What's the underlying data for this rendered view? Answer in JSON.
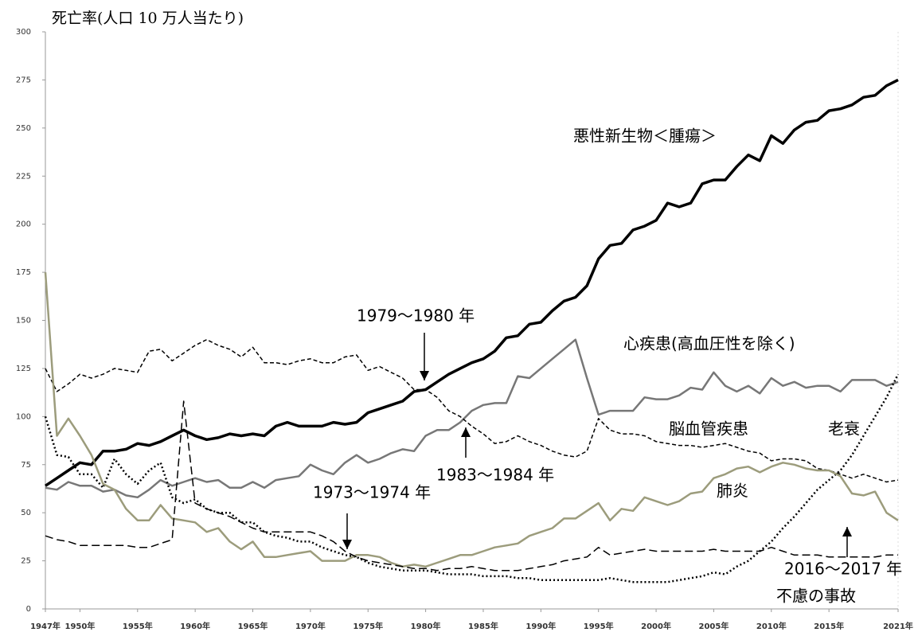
{
  "chart_data": {
    "type": "line",
    "y_label": "死亡率(人口 10 万人当たり)",
    "x": [
      1947,
      1948,
      1949,
      1950,
      1951,
      1952,
      1953,
      1954,
      1955,
      1956,
      1957,
      1958,
      1959,
      1960,
      1961,
      1962,
      1963,
      1964,
      1965,
      1966,
      1967,
      1968,
      1969,
      1970,
      1971,
      1972,
      1973,
      1974,
      1975,
      1976,
      1977,
      1978,
      1979,
      1980,
      1981,
      1982,
      1983,
      1984,
      1985,
      1986,
      1987,
      1988,
      1989,
      1990,
      1991,
      1992,
      1993,
      1994,
      1995,
      1996,
      1997,
      1998,
      1999,
      2000,
      2001,
      2002,
      2003,
      2004,
      2005,
      2006,
      2007,
      2008,
      2009,
      2010,
      2011,
      2012,
      2013,
      2014,
      2015,
      2016,
      2017,
      2018,
      2019,
      2020,
      2021
    ],
    "xlim": [
      1947,
      2021
    ],
    "xticks": [
      {
        "value": 1947,
        "label": "1947年"
      },
      {
        "value": 1950,
        "label": "1950年"
      },
      {
        "value": 1955,
        "label": "1955年"
      },
      {
        "value": 1960,
        "label": "1960年"
      },
      {
        "value": 1965,
        "label": "1965年"
      },
      {
        "value": 1970,
        "label": "1970年"
      },
      {
        "value": 1975,
        "label": "1975年"
      },
      {
        "value": 1980,
        "label": "1980年"
      },
      {
        "value": 1985,
        "label": "1985年"
      },
      {
        "value": 1990,
        "label": "1990年"
      },
      {
        "value": 1995,
        "label": "1995年"
      },
      {
        "value": 2000,
        "label": "2000年"
      },
      {
        "value": 2005,
        "label": "2005年"
      },
      {
        "value": 2010,
        "label": "2010年"
      },
      {
        "value": 2015,
        "label": "2015年"
      },
      {
        "value": 2021,
        "label": "2021年"
      }
    ],
    "ylim": [
      0,
      300
    ],
    "yticks": [
      0,
      25,
      50,
      75,
      100,
      125,
      150,
      175,
      200,
      225,
      250,
      275,
      300
    ],
    "series": [
      {
        "name": "悪性新生物＜腫瘍＞",
        "color": "#000000",
        "line_style": "solid",
        "values": [
          64,
          68,
          72,
          76,
          75,
          82,
          82,
          83,
          86,
          85,
          87,
          90,
          93,
          90,
          88,
          89,
          91,
          90,
          91,
          90,
          95,
          97,
          95,
          95,
          95,
          97,
          96,
          97,
          102,
          104,
          106,
          108,
          113,
          114,
          118,
          122,
          125,
          128,
          130,
          134,
          141,
          142,
          148,
          149,
          155,
          160,
          162,
          168,
          182,
          189,
          190,
          197,
          199,
          202,
          211,
          209,
          211,
          221,
          223,
          223,
          230,
          236,
          233,
          246,
          242,
          249,
          253,
          254,
          259,
          260,
          262,
          266,
          267,
          272,
          275
        ]
      },
      {
        "name": "心疾患(高血圧性を除く)",
        "color": "#777777",
        "line_style": "solid",
        "values": [
          63,
          62,
          66,
          64,
          64,
          61,
          62,
          59,
          58,
          62,
          67,
          64,
          66,
          68,
          66,
          67,
          63,
          63,
          66,
          63,
          67,
          68,
          69,
          75,
          72,
          70,
          76,
          80,
          76,
          78,
          81,
          83,
          82,
          90,
          93,
          93,
          97,
          103,
          106,
          107,
          107,
          121,
          120,
          125,
          130,
          135,
          140,
          120,
          101,
          103,
          103,
          103,
          110,
          109,
          109,
          111,
          115,
          114,
          123,
          116,
          113,
          116,
          112,
          120,
          116,
          118,
          115,
          116,
          116,
          113,
          119,
          119,
          119,
          116,
          118
        ]
      },
      {
        "name": "脳血管疾患",
        "color": "#000000",
        "line_style": "dashed",
        "values": [
          125,
          113,
          117,
          122,
          120,
          122,
          125,
          124,
          123,
          134,
          135,
          129,
          133,
          137,
          140,
          137,
          135,
          131,
          136,
          128,
          128,
          127,
          129,
          130,
          128,
          128,
          131,
          132,
          124,
          126,
          123,
          120,
          114,
          114,
          110,
          103,
          100,
          95,
          91,
          86,
          87,
          90,
          87,
          85,
          82,
          80,
          79,
          82,
          99,
          93,
          91,
          91,
          90,
          87,
          86,
          85,
          85,
          84,
          85,
          86,
          84,
          82,
          81,
          77,
          78,
          78,
          77,
          73,
          72,
          70,
          68,
          70,
          68,
          66,
          67
        ]
      },
      {
        "name": "老衰",
        "color": "#000000",
        "line_style": "dotted",
        "values": [
          100,
          80,
          79,
          70,
          70,
          63,
          78,
          70,
          65,
          72,
          76,
          58,
          55,
          57,
          52,
          50,
          50,
          45,
          45,
          40,
          38,
          37,
          35,
          35,
          32,
          30,
          28,
          27,
          24,
          22,
          21,
          20,
          20,
          20,
          19,
          18,
          18,
          18,
          17,
          17,
          17,
          16,
          16,
          15,
          15,
          15,
          15,
          15,
          15,
          16,
          15,
          14,
          14,
          14,
          14,
          15,
          16,
          17,
          19,
          18,
          22,
          25,
          30,
          35,
          42,
          48,
          55,
          62,
          67,
          72,
          80,
          90,
          100,
          110,
          122
        ]
      },
      {
        "name": "肺炎",
        "color": "#9c9c7c",
        "line_style": "solid",
        "values": [
          175,
          90,
          99,
          90,
          80,
          65,
          62,
          52,
          46,
          46,
          54,
          47,
          46,
          45,
          40,
          42,
          35,
          31,
          35,
          27,
          27,
          28,
          29,
          30,
          25,
          25,
          25,
          28,
          28,
          27,
          24,
          22,
          23,
          22,
          24,
          26,
          28,
          28,
          30,
          32,
          33,
          34,
          38,
          40,
          42,
          47,
          47,
          51,
          55,
          46,
          52,
          51,
          58,
          56,
          54,
          56,
          60,
          61,
          68,
          70,
          73,
          74,
          71,
          74,
          76,
          75,
          73,
          72,
          72,
          69,
          60,
          59,
          61,
          50,
          46
        ]
      },
      {
        "name": "不慮の事故",
        "color": "#000000",
        "line_style": "longdash",
        "values": [
          38,
          36,
          35,
          33,
          33,
          33,
          33,
          33,
          32,
          32,
          34,
          36,
          108,
          55,
          52,
          50,
          48,
          45,
          42,
          40,
          40,
          40,
          40,
          40,
          38,
          35,
          30,
          27,
          25,
          24,
          23,
          22,
          21,
          21,
          20,
          21,
          21,
          22,
          21,
          20,
          20,
          20,
          21,
          22,
          23,
          25,
          26,
          27,
          32,
          28,
          29,
          30,
          31,
          30,
          30,
          30,
          30,
          30,
          31,
          30,
          30,
          30,
          30,
          32,
          30,
          28,
          28,
          28,
          27,
          27,
          27,
          27,
          27,
          28,
          28
        ]
      }
    ],
    "annotations": [
      {
        "text": "1979～1980 年"
      },
      {
        "text": "1983～1984 年"
      },
      {
        "text": "1973～1974 年"
      },
      {
        "text": "2016～2017 年"
      }
    ]
  }
}
